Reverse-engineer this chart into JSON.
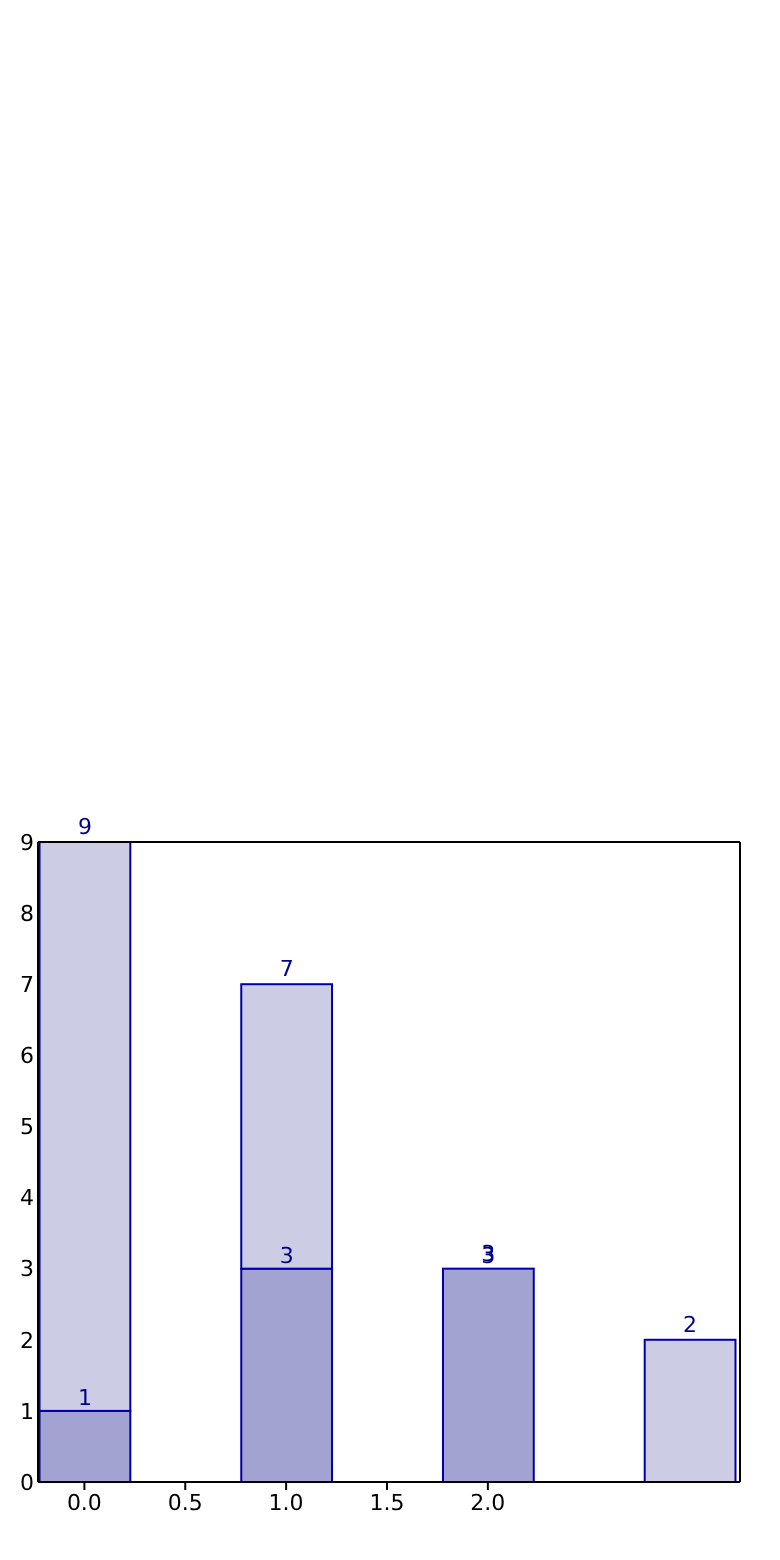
{
  "chart_data": {
    "type": "bar",
    "x": [
      0,
      1,
      2,
      3
    ],
    "stacked": true,
    "series": [
      {
        "color": "#a3a3d2",
        "values": [
          1,
          3,
          3,
          null
        ],
        "value_labels": [
          "1",
          "3",
          "3",
          null
        ]
      },
      {
        "color": "#ccccE5",
        "values": [
          8,
          4,
          0,
          2
        ]
      }
    ],
    "totals": [
      "9",
      "7",
      "3",
      "2"
    ],
    "xlim": [
      -0.23,
      3.25
    ],
    "xticks": [
      {
        "value": 0,
        "label": "0.0"
      },
      {
        "value": 0.5,
        "label": "0.5"
      },
      {
        "value": 1,
        "label": "1.0"
      },
      {
        "value": 1.5,
        "label": "1.5"
      },
      {
        "value": 2,
        "label": "2.0"
      }
    ],
    "ylim": [
      0,
      9
    ],
    "yticks": [
      0,
      1,
      2,
      3,
      4,
      5,
      6,
      7,
      8,
      9
    ],
    "grid": false
  }
}
